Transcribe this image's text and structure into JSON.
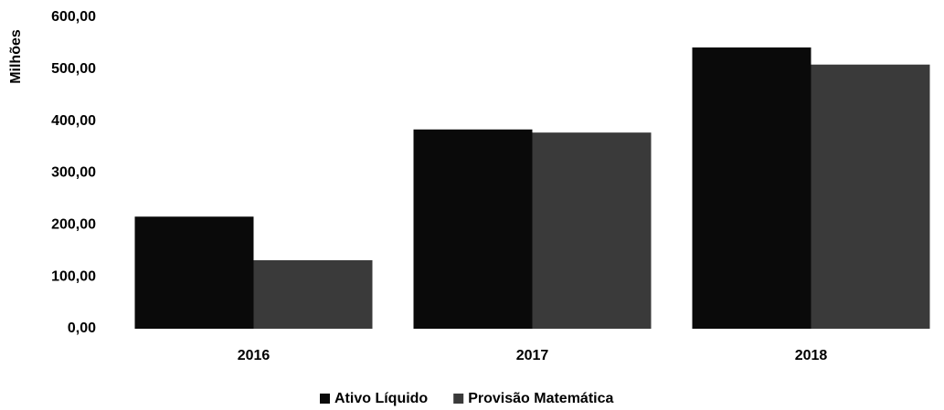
{
  "chart_data": {
    "type": "bar",
    "y_label": "Milhões",
    "categories": [
      "2016",
      "2017",
      "2018"
    ],
    "series": [
      {
        "name": "Ativo Líquido",
        "color": "#0a0a0a",
        "values": [
          216,
          384,
          542
        ]
      },
      {
        "name": "Provisão Matemática",
        "color": "#3a3a3a",
        "values": [
          132,
          378,
          509
        ]
      }
    ],
    "ylim": [
      0,
      600
    ],
    "yticks": [
      {
        "value": 0,
        "label": "0,00"
      },
      {
        "value": 100,
        "label": "100,00"
      },
      {
        "value": 200,
        "label": "200,00"
      },
      {
        "value": 300,
        "label": "300,00"
      },
      {
        "value": 400,
        "label": "400,00"
      },
      {
        "value": 500,
        "label": "500,00"
      },
      {
        "value": 600,
        "label": "600,00"
      }
    ],
    "grid": false,
    "legend": "bottom"
  }
}
